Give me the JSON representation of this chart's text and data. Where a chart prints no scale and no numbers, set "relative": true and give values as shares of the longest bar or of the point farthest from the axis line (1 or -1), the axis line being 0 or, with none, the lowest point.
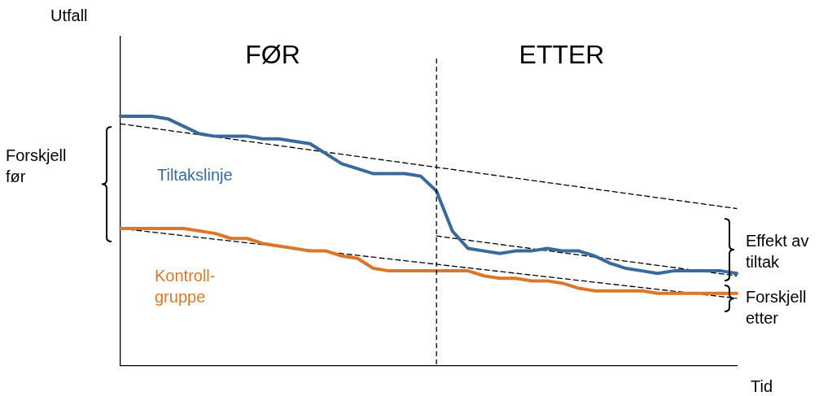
{
  "chart_data": {
    "type": "line",
    "relative": true,
    "xlabel": "Tid",
    "grid": false,
    "legend": false,
    "marker": "none",
    "categories": [
      null,
      null,
      null,
      null,
      null,
      null,
      null,
      null,
      null,
      null,
      null,
      null,
      null,
      null,
      null,
      null,
      null,
      null,
      null,
      null,
      null,
      null,
      null,
      null,
      null,
      null,
      null,
      null,
      null,
      null,
      null,
      null,
      null,
      null,
      null,
      null,
      null,
      null,
      null,
      null
    ],
    "series": [
      {
        "name": "Tiltakslinje",
        "color": "#3a6a9c",
        "values": [
          1.0,
          1.0,
          1.0,
          0.99,
          0.96,
          0.93,
          0.92,
          0.92,
          0.92,
          0.91,
          0.91,
          0.9,
          0.89,
          0.85,
          0.81,
          0.79,
          0.77,
          0.77,
          0.77,
          0.76,
          0.7,
          0.54,
          0.47,
          0.46,
          0.45,
          0.46,
          0.46,
          0.47,
          0.46,
          0.46,
          0.44,
          0.41,
          0.39,
          0.38,
          0.37,
          0.38,
          0.38,
          0.38,
          0.38,
          0.37
        ]
      },
      {
        "name": "Kontroll-\ngruppe",
        "color": "#d9782a",
        "values": [
          0.55,
          0.55,
          0.55,
          0.55,
          0.55,
          0.54,
          0.53,
          0.51,
          0.51,
          0.49,
          0.48,
          0.47,
          0.46,
          0.46,
          0.44,
          0.43,
          0.39,
          0.38,
          0.38,
          0.38,
          0.38,
          0.38,
          0.38,
          0.36,
          0.35,
          0.35,
          0.34,
          0.34,
          0.33,
          0.31,
          0.3,
          0.3,
          0.3,
          0.3,
          0.29,
          0.29,
          0.29,
          0.29,
          0.29,
          0.29
        ]
      },
      {
        "color": "#000000",
        "line_style": "dashed",
        "values": [
          0.97,
          null,
          null,
          null,
          null,
          null,
          null,
          null,
          null,
          null,
          null,
          null,
          null,
          null,
          null,
          null,
          null,
          null,
          null,
          null,
          null,
          null,
          null,
          null,
          null,
          null,
          null,
          null,
          null,
          null,
          null,
          null,
          null,
          null,
          null,
          null,
          null,
          null,
          null,
          0.63
        ]
      },
      {
        "color": "#000000",
        "line_style": "dashed",
        "values": [
          null,
          null,
          null,
          null,
          null,
          null,
          null,
          null,
          null,
          null,
          null,
          null,
          null,
          null,
          null,
          null,
          null,
          null,
          null,
          null,
          0.52,
          null,
          null,
          null,
          null,
          null,
          null,
          null,
          null,
          null,
          null,
          null,
          null,
          null,
          null,
          null,
          null,
          null,
          null,
          0.36
        ]
      },
      {
        "color": "#000000",
        "line_style": "dashed",
        "values": [
          0.55,
          null,
          null,
          null,
          null,
          null,
          null,
          null,
          null,
          null,
          null,
          null,
          null,
          null,
          null,
          null,
          null,
          null,
          null,
          null,
          null,
          null,
          null,
          null,
          null,
          null,
          null,
          null,
          null,
          null,
          null,
          null,
          null,
          null,
          null,
          null,
          null,
          null,
          null,
          0.27
        ]
      }
    ],
    "annotations": [
      "FØR",
      "ETTER",
      "Forskjell\nfør",
      "Effekt av\ntiltak",
      "Forskjell\netter",
      "Utfall"
    ]
  }
}
